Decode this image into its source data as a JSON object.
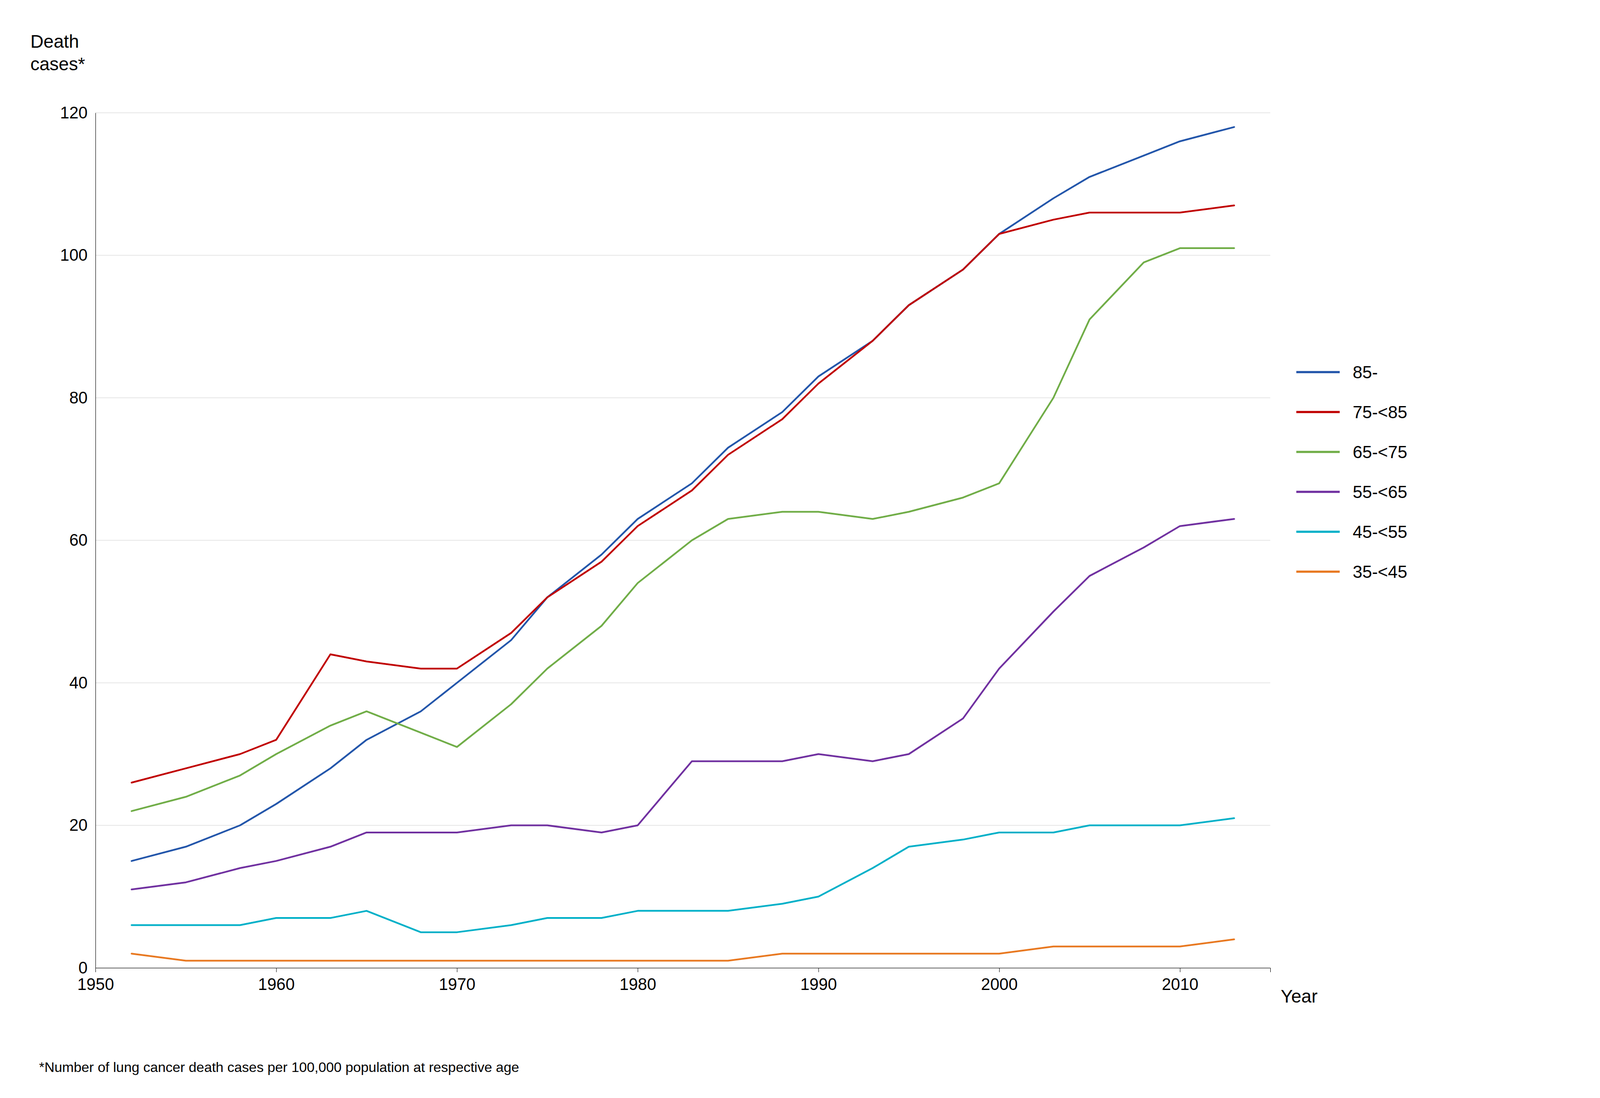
{
  "chart_data": {
    "type": "line",
    "x": [
      1952,
      1955,
      1958,
      1960,
      1963,
      1965,
      1968,
      1970,
      1973,
      1975,
      1978,
      1980,
      1983,
      1985,
      1988,
      1990,
      1993,
      1995,
      1998,
      2000,
      2003,
      2005,
      2008,
      2010,
      2013
    ],
    "series": [
      {
        "name": "85-",
        "color": "#2255AA",
        "values": [
          15,
          17,
          20,
          23,
          28,
          32,
          36,
          40,
          46,
          52,
          58,
          63,
          68,
          73,
          78,
          83,
          88,
          93,
          98,
          103,
          108,
          111,
          114,
          116,
          118
        ]
      },
      {
        "name": "75-<85",
        "color": "#C00000",
        "values": [
          26,
          28,
          30,
          32,
          44,
          43,
          42,
          42,
          47,
          52,
          57,
          62,
          67,
          72,
          77,
          82,
          88,
          93,
          98,
          103,
          105,
          106,
          106,
          106,
          107
        ]
      },
      {
        "name": "65-<75",
        "color": "#70AD47",
        "values": [
          22,
          24,
          27,
          30,
          34,
          36,
          33,
          31,
          37,
          42,
          48,
          54,
          60,
          63,
          64,
          64,
          63,
          64,
          66,
          68,
          80,
          91,
          99,
          101,
          101
        ]
      },
      {
        "name": "55-<65",
        "color": "#7030A0",
        "values": [
          11,
          12,
          14,
          15,
          17,
          19,
          19,
          19,
          20,
          20,
          19,
          20,
          29,
          29,
          29,
          30,
          29,
          30,
          35,
          42,
          50,
          55,
          59,
          62,
          63
        ]
      },
      {
        "name": "45-<55",
        "color": "#00B0C8",
        "values": [
          6,
          6,
          6,
          7,
          7,
          8,
          5,
          5,
          6,
          7,
          7,
          8,
          8,
          8,
          9,
          10,
          14,
          17,
          18,
          19,
          19,
          20,
          20,
          20,
          21
        ]
      },
      {
        "name": "35-<45",
        "color": "#E87820",
        "values": [
          2,
          1,
          1,
          1,
          1,
          1,
          1,
          1,
          1,
          1,
          1,
          1,
          1,
          1,
          2,
          2,
          2,
          2,
          2,
          2,
          3,
          3,
          3,
          3,
          4
        ]
      }
    ],
    "y_label": [
      "Death",
      "cases*"
    ],
    "x_label": "Year",
    "annotations": [
      "*Number of lung cancer death cases per 100,000 population at respective age"
    ],
    "xlim": [
      1950,
      2015
    ],
    "xticks": [
      1950,
      1960,
      1970,
      1980,
      1990,
      2000,
      2010
    ],
    "ylim": [
      0,
      120
    ],
    "yticks": [
      0,
      20,
      40,
      60,
      80,
      100,
      120
    ],
    "grid": true,
    "legend": "right"
  }
}
